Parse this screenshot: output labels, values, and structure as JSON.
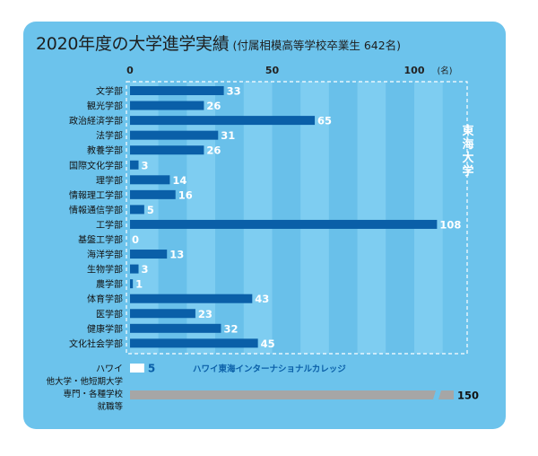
{
  "header": {
    "title": "2020年度の大学進学実績",
    "subtitle": "(付属相模高等学校卒業生 642名)"
  },
  "chart_data": {
    "type": "bar",
    "orientation": "horizontal",
    "x_ticks": [
      "0",
      "50",
      "100"
    ],
    "x_unit": "(名)",
    "xlim": [
      0,
      110
    ],
    "group_label": "東海大学",
    "categories": [
      "文学部",
      "観光学部",
      "政治経済学部",
      "法学部",
      "教養学部",
      "国際文化学部",
      "理学部",
      "情報理工学部",
      "情報通信学部",
      "工学部",
      "基盤工学部",
      "海洋学部",
      "生物学部",
      "農学部",
      "体育学部",
      "医学部",
      "健康学部",
      "文化社会学部"
    ],
    "values": [
      33,
      26,
      65,
      31,
      26,
      3,
      14,
      16,
      5,
      108,
      0,
      13,
      3,
      1,
      43,
      23,
      32,
      45
    ],
    "extra": [
      {
        "label": "ハワイ",
        "value": 5,
        "note": "ハワイ東海インターナショナルカレッジ"
      },
      {
        "label_lines": [
          "他大学・他短期大学",
          "専門・各種学校",
          "就職等"
        ],
        "value": 150,
        "axis_break": true
      }
    ],
    "colors": {
      "bar": "#0a5fa8",
      "background": "#6cc3ec",
      "hawaii_bar": "#ffffff",
      "other_bar": "#a6a6a6"
    }
  }
}
